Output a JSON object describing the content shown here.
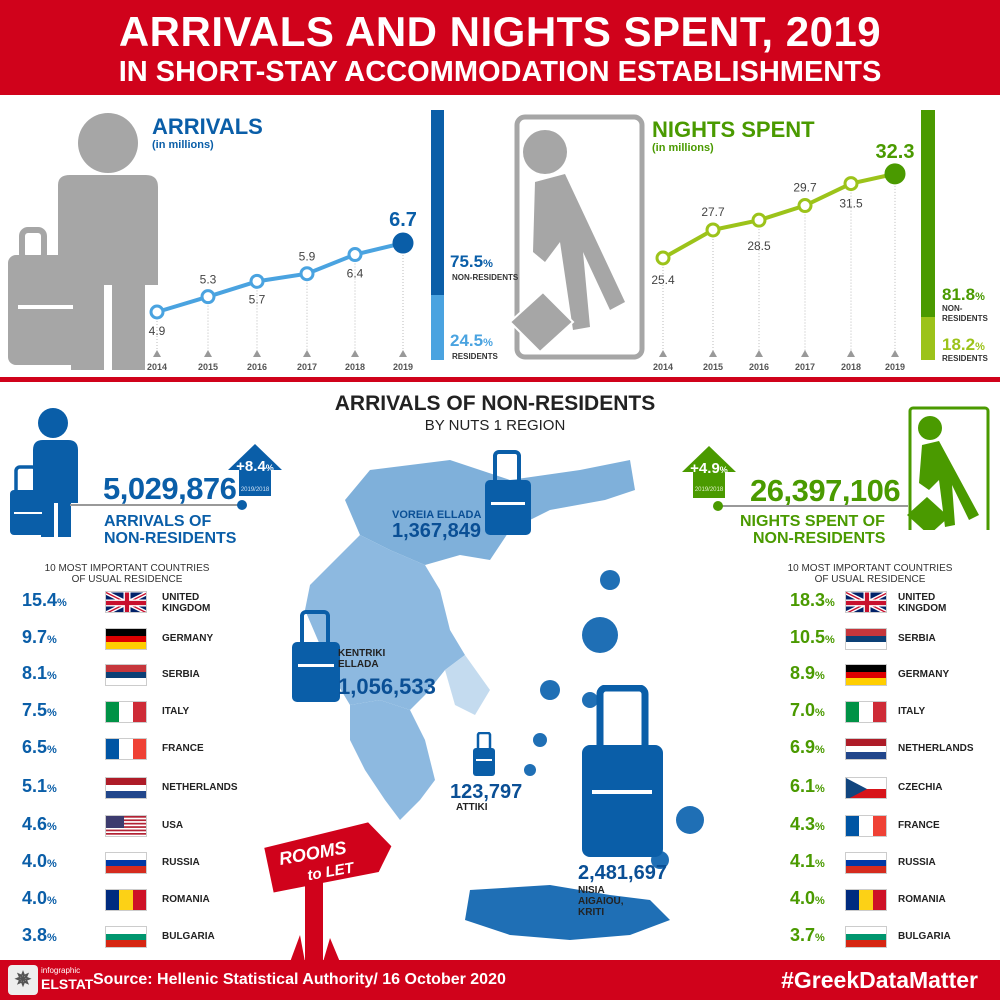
{
  "header": {
    "title": "ARRIVALS AND NIGHTS SPENT,  2019",
    "subtitle": "IN SHORT-STAY ACCOMMODATION ESTABLISHMENTS"
  },
  "colors": {
    "red": "#d0021b",
    "blue": "#0a5ea8",
    "light_blue": "#4aa3e0",
    "green": "#4a9a00",
    "light_green": "#9cc31a",
    "gray": "#a6a6a6"
  },
  "chart_data": [
    {
      "type": "line",
      "title": "ARRIVALS",
      "subtitle": "(in millions)",
      "categories": [
        "2014",
        "2015",
        "2016",
        "2017",
        "2018",
        "2019"
      ],
      "values": [
        4.9,
        5.3,
        5.7,
        5.9,
        6.4,
        6.7
      ],
      "labels": [
        "4.9",
        "5.3",
        "5.7",
        "5.9",
        "6.4",
        "6.7"
      ],
      "share": {
        "non_residents": "75.5",
        "residents": "24.5",
        "non_residents_label": "NON-RESIDENTS",
        "residents_label": "RESIDENTS"
      }
    },
    {
      "type": "line",
      "title": "NIGHTS SPENT",
      "subtitle": "(in millions)",
      "categories": [
        "2014",
        "2015",
        "2016",
        "2017",
        "2018",
        "2019"
      ],
      "values": [
        25.4,
        27.7,
        28.5,
        29.7,
        31.5,
        32.3
      ],
      "labels": [
        "25.4",
        "27.7",
        "28.5",
        "29.7",
        "31.5",
        "32.3"
      ],
      "share": {
        "non_residents": "81.8",
        "residents": "18.2",
        "non_residents_label": "NON-RESIDENTS",
        "residents_label": "RESIDENTS"
      }
    }
  ],
  "section": {
    "title": "ARRIVALS OF NON-RESIDENTS",
    "subtitle": "BY NUTS 1 REGION"
  },
  "arrivals": {
    "total": "5,029,876",
    "caption1": "ARRIVALS OF",
    "caption2": "NON-RESIDENTS",
    "change": "+8.4",
    "period": "2019/2018",
    "list_title1": "10 MOST IMPORTANT COUNTRIES",
    "list_title2": "OF USUAL RESIDENCE",
    "countries": [
      {
        "pct": "15.4",
        "name": "UNITED KINGDOM",
        "flag": "uk"
      },
      {
        "pct": "9.7",
        "name": "GERMANY",
        "flag": "de"
      },
      {
        "pct": "8.1",
        "name": "SERBIA",
        "flag": "rs"
      },
      {
        "pct": "7.5",
        "name": "ITALY",
        "flag": "it"
      },
      {
        "pct": "6.5",
        "name": "FRANCE",
        "flag": "fr"
      },
      {
        "pct": "5.1",
        "name": "NETHERLANDS",
        "flag": "nl"
      },
      {
        "pct": "4.6",
        "name": "USA",
        "flag": "us"
      },
      {
        "pct": "4.0",
        "name": "RUSSIA",
        "flag": "ru"
      },
      {
        "pct": "4.0",
        "name": "ROMANIA",
        "flag": "ro"
      },
      {
        "pct": "3.8",
        "name": "BULGARIA",
        "flag": "bg"
      }
    ]
  },
  "nights": {
    "total": "26,397,106",
    "caption1": "NIGHTS SPENT OF",
    "caption2": "NON-RESIDENTS",
    "change": "+4.9",
    "period": "2019/2018",
    "list_title1": "10 MOST IMPORTANT COUNTRIES",
    "list_title2": "OF USUAL RESIDENCE",
    "countries": [
      {
        "pct": "18.3",
        "name": "UNITED KINGDOM",
        "flag": "uk"
      },
      {
        "pct": "10.5",
        "name": "SERBIA",
        "flag": "rs"
      },
      {
        "pct": "8.9",
        "name": "GERMANY",
        "flag": "de"
      },
      {
        "pct": "7.0",
        "name": "ITALY",
        "flag": "it"
      },
      {
        "pct": "6.9",
        "name": "NETHERLANDS",
        "flag": "nl"
      },
      {
        "pct": "6.1",
        "name": "CZECHIA",
        "flag": "cz"
      },
      {
        "pct": "4.3",
        "name": "FRANCE",
        "flag": "fr"
      },
      {
        "pct": "4.1",
        "name": "RUSSIA",
        "flag": "ru"
      },
      {
        "pct": "4.0",
        "name": "ROMANIA",
        "flag": "ro"
      },
      {
        "pct": "3.7",
        "name": "BULGARIA",
        "flag": "bg"
      }
    ]
  },
  "regions": [
    {
      "name": "VOREIA ELLADA",
      "value": "1,367,849"
    },
    {
      "name": "KENTRIKI ELLADA",
      "value": "1,056,533"
    },
    {
      "name": "ATTIKI",
      "value": "123,797"
    },
    {
      "name": "NISIA AIGAIOU, KRITI",
      "value": "2,481,697"
    }
  ],
  "sign": {
    "line1": "ROOMS",
    "line2": "to LET"
  },
  "footer": {
    "logo_top": "infographic",
    "logo_bottom": "ELSTAT",
    "source": "Source: Hellenic Statistical Authority/ 16 October 2020",
    "hashtag": "#GreekDataMatter"
  },
  "pct_sign": "%"
}
